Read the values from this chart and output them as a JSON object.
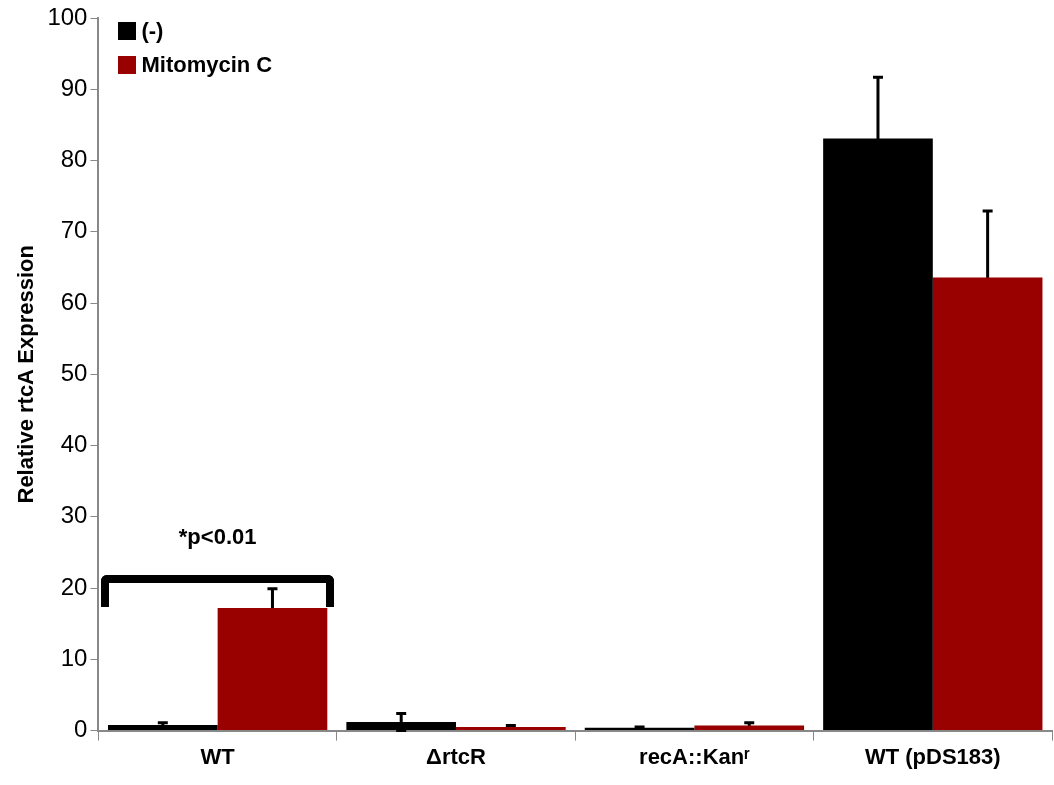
{
  "chart_data": {
    "type": "bar",
    "ylabel": "Relative rtcA Expression",
    "categories": [
      "WT",
      "ΔrtcR",
      "recA::Kanʳ",
      "WT (pDS183)"
    ],
    "series": [
      {
        "name": "(-)",
        "color": "#000000",
        "values": [
          0.8,
          1.2,
          0.4,
          83.1
        ],
        "errors": [
          0.3,
          1.2,
          0.1,
          8.6
        ]
      },
      {
        "name": "Mitomycin C",
        "color": "#990000",
        "values": [
          17.2,
          0.5,
          0.7,
          63.6
        ],
        "errors": [
          2.7,
          0.2,
          0.4,
          9.3
        ]
      }
    ],
    "ylim": [
      0,
      100
    ],
    "yticks": [
      0,
      10,
      20,
      30,
      40,
      50,
      60,
      70,
      80,
      90,
      100
    ],
    "grid": false,
    "legend": "top left",
    "annotations": [
      "*p<0.01"
    ]
  }
}
